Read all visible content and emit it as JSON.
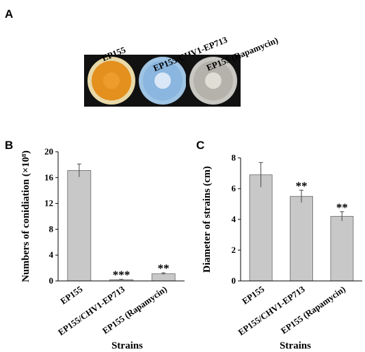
{
  "panel_a": {
    "letter": "A",
    "dishes": [
      {
        "label": "EP155",
        "colors": {
          "plate": "#e8d9a8",
          "inner": "#e3901f",
          "center": "#f0a030"
        }
      },
      {
        "label": "EP155/CHV1-EP713",
        "colors": {
          "plate": "#9fc4e4",
          "inner": "#8ab6e0",
          "center": "#e6f0fa"
        }
      },
      {
        "label": "EP155 (Rapamycin)",
        "colors": {
          "plate": "#c9c7c2",
          "inner": "#b5b2ac",
          "center": "#e8e4dc"
        }
      }
    ]
  },
  "chart_data": [
    {
      "type": "bar",
      "panel": "B",
      "ylabel": "Numbers of conidiation (×10⁸)",
      "xlabel": "Strains",
      "categories": [
        "EP155",
        "EP155/CHV1-EP713",
        "EP155 (Rapamycin)"
      ],
      "values": [
        17.1,
        0.2,
        1.1
      ],
      "errors": [
        1.0,
        0.05,
        0.15
      ],
      "significance": [
        "",
        "***",
        "**"
      ],
      "ylim": [
        0,
        20
      ],
      "yticks": [
        0,
        4,
        8,
        12,
        16,
        20
      ],
      "bar_color": "#c8c8c8"
    },
    {
      "type": "bar",
      "panel": "C",
      "ylabel": "Diameter of strains (cm)",
      "xlabel": "Strains",
      "categories": [
        "EP155",
        "EP155/CHV1-EP713",
        "EP155 (Rapamycin)"
      ],
      "values": [
        6.9,
        5.5,
        4.2
      ],
      "errors": [
        0.8,
        0.4,
        0.3
      ],
      "significance": [
        "",
        "**",
        "**"
      ],
      "ylim": [
        0,
        8
      ],
      "yticks": [
        0,
        2,
        4,
        6,
        8
      ],
      "bar_color": "#c8c8c8"
    }
  ]
}
